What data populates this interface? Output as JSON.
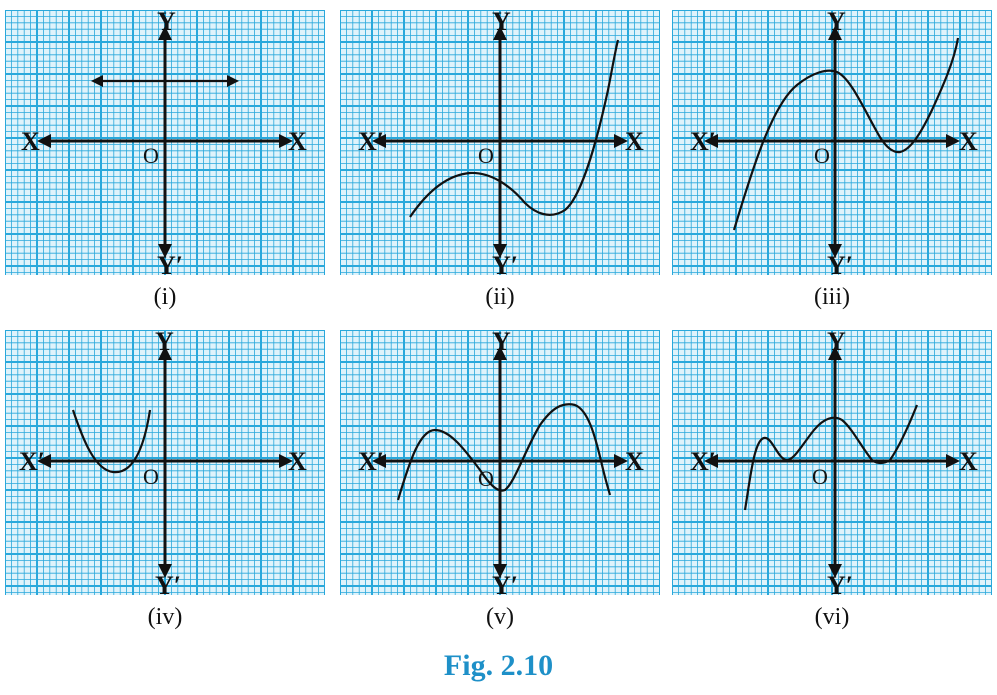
{
  "figure": {
    "title": "Fig. 2.10",
    "title_color": "#1e90c8",
    "grid_color": "#29a8db",
    "axis_color": "#111111",
    "curve_color": "#111111"
  },
  "axis_labels": {
    "x": "X",
    "x_neg": "X′",
    "y": "Y",
    "y_neg": "Y′",
    "origin": "O"
  },
  "panels": [
    {
      "id": "i",
      "caption": "(i)",
      "curve": "horizontal line with arrows on both ends, parallel to the x-axis"
    },
    {
      "id": "ii",
      "caption": "(ii)",
      "curve": "cubic-shaped curve crossing x-axis once"
    },
    {
      "id": "iii",
      "caption": "(iii)",
      "curve": "cubic-shaped curve crossing x-axis three times"
    },
    {
      "id": "iv",
      "caption": "(iv)",
      "curve": "upward parabola crossing x-axis twice, left of the y-axis"
    },
    {
      "id": "v",
      "caption": "(v)",
      "curve": "wave curve crossing x-axis four times"
    },
    {
      "id": "vi",
      "caption": "(vi)",
      "curve": "curve crossing x-axis once and touching it twice"
    }
  ]
}
